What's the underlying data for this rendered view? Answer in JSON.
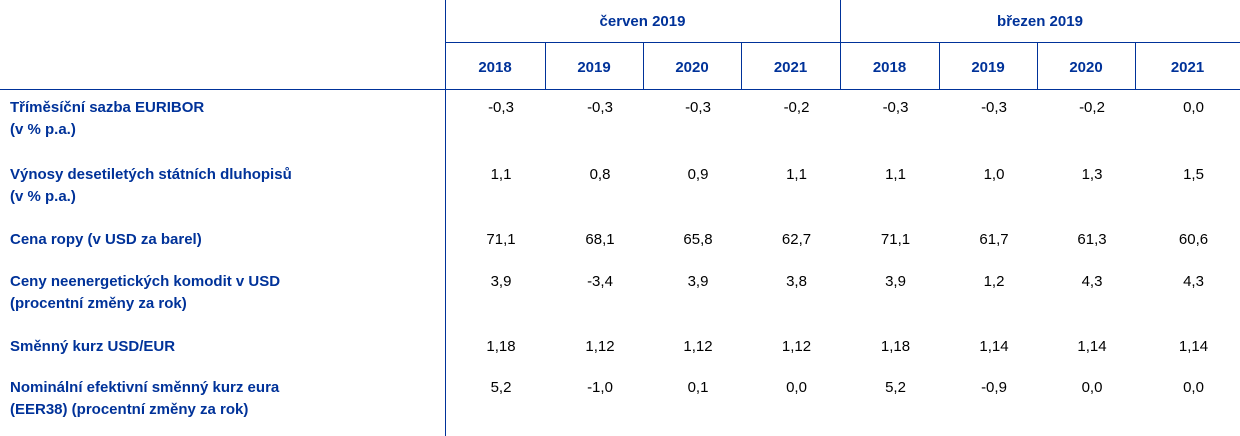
{
  "header": {
    "groups": [
      "červen 2019",
      "březen 2019"
    ],
    "years": [
      "2018",
      "2019",
      "2020",
      "2021",
      "2018",
      "2019",
      "2020",
      "2021"
    ]
  },
  "rows": [
    {
      "label": [
        "Tříměsíční sazba EURIBOR",
        "(v % p.a.)"
      ],
      "values": [
        "-0,3",
        "-0,3",
        "-0,3",
        "-0,2",
        "-0,3",
        "-0,3",
        "-0,2",
        "0,0"
      ]
    },
    {
      "label": [
        "Výnosy desetiletých státních dluhopisů",
        "(v % p.a.)"
      ],
      "values": [
        "1,1",
        "0,8",
        "0,9",
        "1,1",
        "1,1",
        "1,0",
        "1,3",
        "1,5"
      ]
    },
    {
      "label": [
        "Cena ropy (v USD za barel)"
      ],
      "values": [
        "71,1",
        "68,1",
        "65,8",
        "62,7",
        "71,1",
        "61,7",
        "61,3",
        "60,6"
      ]
    },
    {
      "label": [
        "Ceny neenergetických komodit v USD",
        "(procentní změny za rok)"
      ],
      "values": [
        "3,9",
        "-3,4",
        "3,9",
        "3,8",
        "3,9",
        "1,2",
        "4,3",
        "4,3"
      ]
    },
    {
      "label": [
        "Směnný kurz USD/EUR"
      ],
      "values": [
        "1,18",
        "1,12",
        "1,12",
        "1,12",
        "1,18",
        "1,14",
        "1,14",
        "1,14"
      ]
    },
    {
      "label": [
        "Nominální efektivní směnný kurz eura",
        "(EER38) (procentní změny za rok)"
      ],
      "values": [
        "5,2",
        "-1,0",
        "0,1",
        "0,0",
        "5,2",
        "-0,9",
        "0,0",
        "0,0"
      ]
    }
  ]
}
